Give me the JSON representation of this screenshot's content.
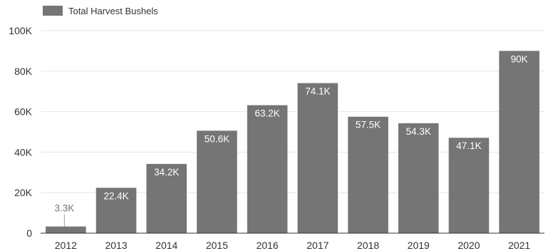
{
  "chart_data": {
    "type": "bar",
    "categories": [
      "2012",
      "2013",
      "2014",
      "2015",
      "2016",
      "2017",
      "2018",
      "2019",
      "2020",
      "2021"
    ],
    "series": [
      {
        "name": "Total Harvest Bushels",
        "values": [
          3300,
          22400,
          34200,
          50600,
          63200,
          74100,
          57500,
          54300,
          47100,
          90000
        ],
        "labels": [
          "3.3K",
          "22.4K",
          "34.2K",
          "50.6K",
          "63.2K",
          "74.1K",
          "57.5K",
          "54.3K",
          "47.1K",
          "90K"
        ],
        "color": "#757575"
      }
    ],
    "y_ticks": [
      {
        "value": 0,
        "label": "0"
      },
      {
        "value": 20000,
        "label": "20K"
      },
      {
        "value": 40000,
        "label": "40K"
      },
      {
        "value": 60000,
        "label": "60K"
      },
      {
        "value": 80000,
        "label": "80K"
      },
      {
        "value": 100000,
        "label": "100K"
      }
    ],
    "ylim": [
      0,
      100000
    ],
    "grid": true,
    "legend_position": "top-left",
    "title": "",
    "xlabel": "",
    "ylabel": ""
  }
}
